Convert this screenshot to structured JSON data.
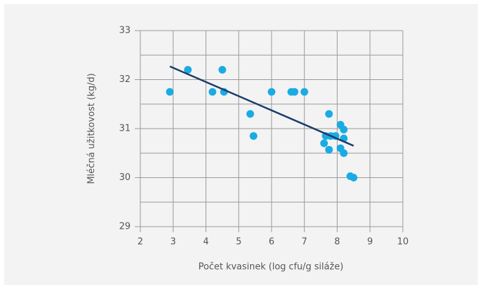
{
  "chart_data": {
    "type": "scatter",
    "xlabel": "Počet kvasinek (log cfu/g siláže)",
    "ylabel": "Mléčná užitkovost (kg/d)",
    "xlim": [
      2,
      10
    ],
    "ylim": [
      29,
      33
    ],
    "xticks": [
      2,
      3,
      4,
      5,
      6,
      7,
      8,
      9,
      10
    ],
    "yticks": [
      29,
      30,
      31,
      32,
      33
    ],
    "y_minor_ticks": [
      29.5,
      30.5,
      31.5,
      32.5
    ],
    "grid": true,
    "color": "#1aabe3",
    "x": [
      2.9,
      3.45,
      4.2,
      4.5,
      4.55,
      5.35,
      5.45,
      6.0,
      6.6,
      6.7,
      7.0,
      7.6,
      7.65,
      7.75,
      7.75,
      7.8,
      7.95,
      8.1,
      8.1,
      8.2,
      8.2,
      8.2,
      8.4,
      8.5
    ],
    "values": [
      31.75,
      32.2,
      31.75,
      32.2,
      31.75,
      31.3,
      30.85,
      31.75,
      31.75,
      31.75,
      31.75,
      30.7,
      30.85,
      31.3,
      30.57,
      30.85,
      30.85,
      31.08,
      30.6,
      30.5,
      30.98,
      30.8,
      30.03,
      30.0
    ],
    "trend_line": {
      "color": "#1b3c6b",
      "x": [
        2.9,
        8.5
      ],
      "y": [
        32.27,
        30.65
      ]
    }
  }
}
